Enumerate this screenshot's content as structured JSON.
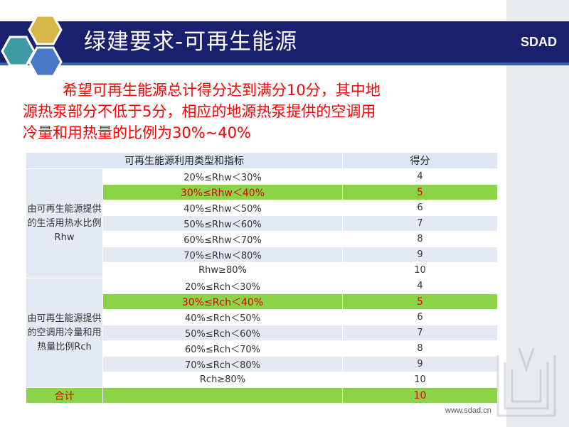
{
  "header": {
    "title": "绿建要求-可再生能源",
    "brand": "SDAD"
  },
  "intro": {
    "line1": "希望可再生能源总计得分达到满分10分，其中地",
    "line2": "源热泵部分不低于5分，相应的地源热泵提供的空调用",
    "line3": "冷量和用热量的比例为30%~40%"
  },
  "table": {
    "col_type": "可再生能源利用类型和指标",
    "col_score": "得分",
    "groups": [
      {
        "category": "由可再生能源提供的生活用热水比例Rhw",
        "rows": [
          {
            "range": "20%≤Rhw＜30%",
            "score": "4"
          },
          {
            "range": "30%≤Rhw＜40%",
            "score": "5"
          },
          {
            "range": "40%≤Rhw＜50%",
            "score": "6"
          },
          {
            "range": "50%≤Rhw＜60%",
            "score": "7"
          },
          {
            "range": "60%≤Rhw＜70%",
            "score": "8"
          },
          {
            "range": "70%≤Rhw＜80%",
            "score": "9"
          },
          {
            "range": "Rhw≥80%",
            "score": "10"
          }
        ]
      },
      {
        "category": "由可再生能源提供的空调用冷量和用热量比例Rch",
        "rows": [
          {
            "range": "20%≤Rch＜30%",
            "score": "4"
          },
          {
            "range": "30%≤Rch＜40%",
            "score": "5"
          },
          {
            "range": "40%≤Rch＜50%",
            "score": "6"
          },
          {
            "range": "50%≤Rch＜60%",
            "score": "7"
          },
          {
            "range": "60%≤Rch＜70%",
            "score": "8"
          },
          {
            "range": "70%≤Rch＜80%",
            "score": "9"
          },
          {
            "range": "Rch≥80%",
            "score": "10"
          }
        ]
      }
    ],
    "total_label": "合计",
    "total_score": "10"
  },
  "footer": {
    "url": "www.sdad.cn"
  },
  "colors": {
    "header_bg": "#1a1f6e",
    "highlight_row": "#8bd447",
    "highlight_text": "#e00000",
    "intro_text": "#ff0000",
    "hex_gold": "#d8b84a",
    "hex_teal": "#3f9ba3",
    "hex_blue": "#4a78c8"
  }
}
